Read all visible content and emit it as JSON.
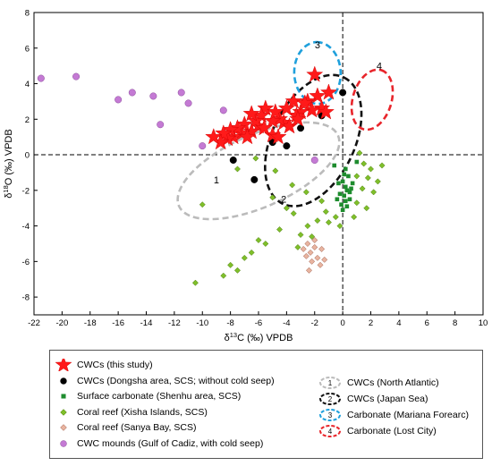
{
  "chart_data": {
    "type": "scatter",
    "xlabel": "δ13C (‰) VPDB",
    "ylabel": "δ18O (‰) VPDB",
    "xlim": [
      -22,
      10
    ],
    "ylim": [
      -9,
      8
    ],
    "xticks": [
      -22,
      -20,
      -18,
      -16,
      -14,
      -12,
      -10,
      -8,
      -6,
      -4,
      -2,
      0,
      2,
      4,
      6,
      8,
      10
    ],
    "yticks": [
      -8,
      -6,
      -4,
      -2,
      0,
      2,
      4,
      6,
      8
    ],
    "reference_lines": {
      "x": 0,
      "y": 0,
      "style": "dashed"
    },
    "series": [
      {
        "name": "CWCs (this study)",
        "marker": "star",
        "color": "#ff1a1a",
        "points": [
          [
            -2,
            4.5
          ],
          [
            -1,
            3.5
          ],
          [
            -1.5,
            2.6
          ],
          [
            -1.8,
            3.3
          ],
          [
            -2.5,
            3
          ],
          [
            -2.2,
            2.5
          ],
          [
            -3,
            2.4
          ],
          [
            -3.5,
            3
          ],
          [
            -3.3,
            2.2
          ],
          [
            -4,
            2.6
          ],
          [
            -4.2,
            1.8
          ],
          [
            -3.8,
            1.6
          ],
          [
            -4.5,
            2
          ],
          [
            -5,
            1.9
          ],
          [
            -5.5,
            2.6
          ],
          [
            -5.8,
            2.2
          ],
          [
            -6,
            1.6
          ],
          [
            -6.2,
            1.9
          ],
          [
            -6.5,
            2.3
          ],
          [
            -6.5,
            1.3
          ],
          [
            -7,
            1.7
          ],
          [
            -7.2,
            1.2
          ],
          [
            -7.5,
            1.5
          ],
          [
            -7.8,
            1.0
          ],
          [
            -8,
            1.4
          ],
          [
            -8.2,
            0.9
          ],
          [
            -8.5,
            1.2
          ],
          [
            -8.7,
            0.7
          ],
          [
            -9.2,
            1.0
          ],
          [
            -5,
            1.1
          ],
          [
            -4.6,
            1.0
          ],
          [
            -6.8,
            1.0
          ],
          [
            -3.2,
            2.0
          ],
          [
            -1.2,
            2.4
          ],
          [
            -2.7,
            2.9
          ],
          [
            -4.8,
            2.4
          ],
          [
            -5.6,
            1.5
          ]
        ]
      },
      {
        "name": "CWCs (Dongsha area, SCS; without cold seep)",
        "marker": "circle",
        "color": "#000000",
        "points": [
          [
            -5,
            0.7
          ],
          [
            -4,
            0.5
          ],
          [
            -3,
            1.5
          ],
          [
            -1.5,
            2.2
          ],
          [
            -6.3,
            -1.4
          ],
          [
            -7.8,
            -0.3
          ],
          [
            0,
            3.5
          ]
        ]
      },
      {
        "name": "Surface carbonate (Shenhu area, SCS)",
        "marker": "square",
        "color": "#1e8c2e",
        "points": [
          [
            0,
            -1.5
          ],
          [
            0.2,
            -1.8
          ],
          [
            0.3,
            -2
          ],
          [
            0.1,
            -2.3
          ],
          [
            0.5,
            -2.1
          ],
          [
            -0.3,
            -1.6
          ],
          [
            0.4,
            -1.2
          ],
          [
            0.2,
            -2.6
          ],
          [
            -0.2,
            -2.2
          ],
          [
            0.6,
            -1.9
          ],
          [
            0.1,
            -1.1
          ],
          [
            0.3,
            -2.9
          ],
          [
            -0.1,
            -2.8
          ],
          [
            0.5,
            -2.5
          ],
          [
            0,
            -3.1
          ],
          [
            -0.4,
            -2.5
          ],
          [
            0.7,
            -1.6
          ],
          [
            -0.6,
            -0.6
          ],
          [
            0.2,
            -0.8
          ],
          [
            1,
            -0.4
          ]
        ]
      },
      {
        "name": "Coral reef (Xisha Islands, SCS)",
        "marker": "diamond",
        "color": "#7fbf2a",
        "points": [
          [
            1.2,
            0.1
          ],
          [
            1.5,
            -0.5
          ],
          [
            2,
            -0.8
          ],
          [
            1.8,
            -1.3
          ],
          [
            2.2,
            -2.1
          ],
          [
            1.4,
            -1.9
          ],
          [
            1,
            -2.7
          ],
          [
            1.7,
            -3
          ],
          [
            2.5,
            -1.5
          ],
          [
            0.8,
            -3.5
          ],
          [
            -0.5,
            -3.5
          ],
          [
            -1.2,
            -3.2
          ],
          [
            -1.8,
            -3.7
          ],
          [
            -2.5,
            -4
          ],
          [
            -3,
            -4.5
          ],
          [
            -3.5,
            -3.3
          ],
          [
            -4,
            -3
          ],
          [
            -4.5,
            -4.2
          ],
          [
            -5,
            -2.4
          ],
          [
            -5.5,
            -5
          ],
          [
            -6,
            -4.8
          ],
          [
            -6.5,
            -5.5
          ],
          [
            -7,
            -5.8
          ],
          [
            -7.5,
            -6.5
          ],
          [
            -8,
            -6.2
          ],
          [
            -8.5,
            -6.8
          ],
          [
            -10.5,
            -7.2
          ],
          [
            -10,
            -2.8
          ],
          [
            -7.5,
            -0.8
          ],
          [
            -6.2,
            -0.2
          ],
          [
            -4.8,
            -0.9
          ],
          [
            -3.6,
            -1.7
          ],
          [
            -2.6,
            -2.1
          ],
          [
            -1.5,
            -2.6
          ],
          [
            -1,
            -3.8
          ],
          [
            -3.2,
            -5.2
          ],
          [
            -2.2,
            -4.6
          ],
          [
            -0.2,
            -4
          ],
          [
            1,
            -1.2
          ],
          [
            2.8,
            -0.6
          ]
        ]
      },
      {
        "name": "Coral reef (Sanya Bay, SCS)",
        "marker": "diamond",
        "color": "#e8b4a0",
        "points": [
          [
            -2.5,
            -5
          ],
          [
            -2.3,
            -5.5
          ],
          [
            -2,
            -5.2
          ],
          [
            -1.8,
            -5.8
          ],
          [
            -2.2,
            -6
          ],
          [
            -2.6,
            -5.7
          ],
          [
            -1.5,
            -5.3
          ],
          [
            -1.6,
            -6.2
          ],
          [
            -2.4,
            -6.5
          ],
          [
            -2,
            -4.8
          ],
          [
            -1.3,
            -5.9
          ],
          [
            -2.8,
            -5.3
          ]
        ]
      },
      {
        "name": "CWC mounds (Gulf of Cadiz, with cold seep)",
        "marker": "circle",
        "color": "#c47ad4",
        "points": [
          [
            -21.5,
            4.3
          ],
          [
            -19,
            4.4
          ],
          [
            -16,
            3.1
          ],
          [
            -15,
            3.5
          ],
          [
            -13.5,
            3.3
          ],
          [
            -13,
            1.7
          ],
          [
            -11.5,
            3.5
          ],
          [
            -11,
            2.9
          ],
          [
            -10,
            0.5
          ],
          [
            -8.5,
            2.5
          ],
          [
            -2,
            -0.3
          ]
        ]
      }
    ],
    "regions": [
      {
        "label": "1",
        "name": "CWCs (North Atlantic)",
        "color": "#bbbbbb",
        "center": [
          -6,
          -0.9
        ],
        "radii": [
          6.2,
          1.4
        ],
        "angle_deg": 24,
        "label_pos": [
          -9,
          -1.6
        ]
      },
      {
        "label": "2",
        "name": "CWCs (Japan Sea)",
        "color": "#111111",
        "center": [
          -2.1,
          0.8
        ],
        "radii": [
          5.0,
          1.6
        ],
        "angle_deg": 64,
        "label_pos": [
          -4.2,
          -2.7
        ]
      },
      {
        "label": "3",
        "name": "Carbonate (Mariana Forearc)",
        "color": "#1fa0dc",
        "center": [
          -1.8,
          4.6
        ],
        "radii": [
          2.2,
          0.9
        ],
        "angle_deg": 92,
        "label_pos": [
          -1.8,
          6.0
        ]
      },
      {
        "label": "4",
        "name": "Carbonate (Lost City)",
        "color": "#e8252b",
        "center": [
          2.1,
          3.1
        ],
        "radii": [
          2.2,
          0.75
        ],
        "angle_deg": 73,
        "label_pos": [
          2.6,
          4.8
        ]
      }
    ]
  },
  "legend": {
    "left": [
      {
        "label": "CWCs (this study)",
        "marker": "star",
        "color": "#ff1a1a"
      },
      {
        "label": "CWCs (Dongsha area, SCS; without cold seep)",
        "marker": "circle",
        "color": "#000000"
      },
      {
        "label": "Surface carbonate (Shenhu area, SCS)",
        "marker": "square",
        "color": "#1e8c2e"
      },
      {
        "label": "Coral reef (Xisha Islands, SCS)",
        "marker": "diamond",
        "color": "#7fbf2a"
      },
      {
        "label": "Coral reef (Sanya Bay, SCS)",
        "marker": "diamond",
        "color": "#e8b4a0"
      },
      {
        "label": "CWC mounds (Gulf of Cadiz, with cold seep)",
        "marker": "circle",
        "color": "#c47ad4"
      }
    ],
    "right": [
      {
        "label": "CWCs (North Atlantic)",
        "num": "1",
        "color": "#bbbbbb"
      },
      {
        "label": "CWCs (Japan Sea)",
        "num": "2",
        "color": "#111111"
      },
      {
        "label": "Carbonate (Mariana Forearc)",
        "num": "3",
        "color": "#1fa0dc"
      },
      {
        "label": "Carbonate (Lost City)",
        "num": "4",
        "color": "#e8252b"
      }
    ]
  }
}
